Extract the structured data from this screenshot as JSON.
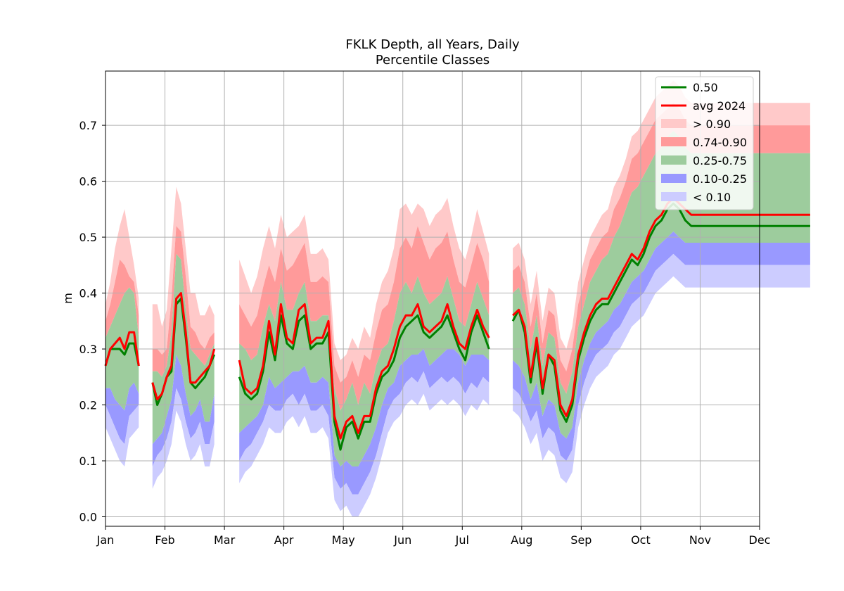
{
  "chart_data": {
    "type": "area",
    "title": "FKLK Depth, all Years, Daily",
    "subtitle": "Percentile Classes",
    "ylabel": "m",
    "xlabel": "",
    "ylim": [
      -0.017,
      0.797
    ],
    "xlim": [
      0,
      11
    ],
    "x_ticks": [
      "Jan",
      "Feb",
      "Mar",
      "Apr",
      "May",
      "Jun",
      "Jul",
      "Aug",
      "Sep",
      "Oct",
      "Nov",
      "Dec"
    ],
    "y_ticks": [
      "0.0",
      "0.1",
      "0.2",
      "0.3",
      "0.4",
      "0.5",
      "0.6",
      "0.7"
    ],
    "y_tick_values": [
      0.0,
      0.1,
      0.2,
      0.3,
      0.4,
      0.5,
      0.6,
      0.7
    ],
    "grid": true,
    "legend_position": "top-right",
    "colors": {
      "median": "#008000",
      "avg": "#ff0000",
      "gt90": "#ffc9c9",
      "p74_90": "#ff9a9a",
      "p25_75": "#9dcc9d",
      "p10_25": "#9999ff",
      "lt10": "#ccccff"
    },
    "legend": [
      {
        "label": "0.50",
        "kind": "line",
        "color": "#008000"
      },
      {
        "label": "avg 2024",
        "kind": "line",
        "color": "#ff0000"
      },
      {
        "label": "> 0.90",
        "kind": "patch",
        "color": "#ffc9c9"
      },
      {
        "label": "0.74-0.90",
        "kind": "patch",
        "color": "#ff9a9a"
      },
      {
        "label": "0.25-0.75",
        "kind": "patch",
        "color": "#9dcc9d"
      },
      {
        "label": "0.10-0.25",
        "kind": "patch",
        "color": "#9999ff"
      },
      {
        "label": "< 0.10",
        "kind": "patch",
        "color": "#ccccff"
      }
    ],
    "segments": [
      {
        "x": [
          0.0,
          0.08,
          0.16,
          0.24,
          0.32,
          0.4,
          0.48,
          0.56
        ],
        "median": [
          0.27,
          0.3,
          0.3,
          0.3,
          0.29,
          0.31,
          0.31,
          0.27
        ],
        "avg": [
          0.27,
          0.3,
          0.31,
          0.32,
          0.3,
          0.33,
          0.33,
          0.27
        ],
        "p10": [
          0.2,
          0.18,
          0.16,
          0.14,
          0.13,
          0.18,
          0.19,
          0.2
        ],
        "p25": [
          0.23,
          0.23,
          0.21,
          0.2,
          0.19,
          0.23,
          0.24,
          0.22
        ],
        "p75": [
          0.32,
          0.34,
          0.36,
          0.38,
          0.4,
          0.41,
          0.4,
          0.32
        ],
        "p90": [
          0.35,
          0.38,
          0.42,
          0.46,
          0.45,
          0.43,
          0.42,
          0.36
        ],
        "p100": [
          0.38,
          0.42,
          0.48,
          0.52,
          0.55,
          0.5,
          0.45,
          0.39
        ]
      },
      {
        "x": [
          0.79,
          0.87,
          0.95,
          1.03,
          1.11,
          1.19,
          1.27,
          1.35,
          1.43,
          1.51,
          1.59,
          1.67,
          1.75,
          1.83
        ],
        "median": [
          0.24,
          0.2,
          0.22,
          0.25,
          0.26,
          0.38,
          0.39,
          0.32,
          0.24,
          0.23,
          0.24,
          0.25,
          0.27,
          0.29
        ],
        "avg": [
          0.24,
          0.21,
          0.22,
          0.25,
          0.27,
          0.39,
          0.4,
          0.33,
          0.24,
          0.24,
          0.25,
          0.26,
          0.27,
          0.3
        ],
        "p10": [
          0.09,
          0.11,
          0.12,
          0.14,
          0.17,
          0.23,
          0.21,
          0.17,
          0.14,
          0.15,
          0.17,
          0.13,
          0.13,
          0.17
        ],
        "p25": [
          0.13,
          0.14,
          0.15,
          0.18,
          0.21,
          0.29,
          0.27,
          0.22,
          0.18,
          0.19,
          0.21,
          0.17,
          0.17,
          0.22
        ],
        "p75": [
          0.26,
          0.26,
          0.25,
          0.27,
          0.33,
          0.47,
          0.46,
          0.37,
          0.3,
          0.29,
          0.28,
          0.27,
          0.29,
          0.31
        ],
        "p90": [
          0.3,
          0.3,
          0.29,
          0.3,
          0.39,
          0.52,
          0.51,
          0.43,
          0.34,
          0.33,
          0.31,
          0.3,
          0.32,
          0.33
        ],
        "p100": [
          0.38,
          0.38,
          0.34,
          0.37,
          0.48,
          0.59,
          0.56,
          0.48,
          0.4,
          0.4,
          0.36,
          0.36,
          0.38,
          0.36
        ]
      },
      {
        "x": [
          2.25,
          2.35,
          2.45,
          2.55,
          2.65,
          2.75,
          2.85,
          2.95,
          3.05,
          3.15,
          3.25,
          3.35,
          3.45,
          3.55,
          3.65,
          3.75,
          3.85,
          3.95,
          4.05,
          4.15,
          4.25,
          4.35,
          4.45,
          4.55,
          4.65,
          4.75,
          4.85,
          4.95,
          5.05,
          5.15,
          5.25,
          5.35,
          5.45,
          5.55,
          5.65,
          5.75,
          5.85,
          5.95,
          6.05,
          6.15,
          6.25,
          6.35,
          6.45
        ],
        "median": [
          0.25,
          0.22,
          0.21,
          0.22,
          0.26,
          0.33,
          0.28,
          0.36,
          0.31,
          0.3,
          0.35,
          0.36,
          0.3,
          0.31,
          0.31,
          0.33,
          0.17,
          0.12,
          0.16,
          0.17,
          0.14,
          0.17,
          0.17,
          0.22,
          0.25,
          0.26,
          0.28,
          0.32,
          0.34,
          0.35,
          0.36,
          0.33,
          0.32,
          0.33,
          0.34,
          0.36,
          0.33,
          0.3,
          0.28,
          0.33,
          0.36,
          0.33,
          0.3
        ],
        "avg": [
          0.28,
          0.23,
          0.22,
          0.23,
          0.27,
          0.35,
          0.29,
          0.38,
          0.32,
          0.31,
          0.37,
          0.38,
          0.31,
          0.32,
          0.32,
          0.35,
          0.18,
          0.14,
          0.17,
          0.18,
          0.15,
          0.18,
          0.18,
          0.23,
          0.26,
          0.27,
          0.3,
          0.34,
          0.36,
          0.36,
          0.38,
          0.34,
          0.33,
          0.34,
          0.35,
          0.38,
          0.34,
          0.31,
          0.3,
          0.34,
          0.37,
          0.34,
          0.32
        ],
        "p10": [
          0.1,
          0.12,
          0.13,
          0.15,
          0.17,
          0.2,
          0.19,
          0.19,
          0.21,
          0.22,
          0.2,
          0.22,
          0.19,
          0.19,
          0.2,
          0.18,
          0.07,
          0.05,
          0.06,
          0.04,
          0.04,
          0.06,
          0.08,
          0.11,
          0.15,
          0.19,
          0.21,
          0.22,
          0.24,
          0.25,
          0.24,
          0.26,
          0.23,
          0.24,
          0.25,
          0.24,
          0.25,
          0.24,
          0.22,
          0.24,
          0.23,
          0.25,
          0.24
        ],
        "p25": [
          0.15,
          0.16,
          0.17,
          0.18,
          0.2,
          0.25,
          0.23,
          0.24,
          0.25,
          0.26,
          0.26,
          0.27,
          0.24,
          0.24,
          0.25,
          0.24,
          0.11,
          0.09,
          0.1,
          0.09,
          0.09,
          0.11,
          0.13,
          0.16,
          0.2,
          0.23,
          0.24,
          0.27,
          0.28,
          0.29,
          0.29,
          0.3,
          0.27,
          0.28,
          0.29,
          0.3,
          0.3,
          0.29,
          0.27,
          0.29,
          0.29,
          0.29,
          0.28
        ],
        "p75": [
          0.31,
          0.3,
          0.28,
          0.29,
          0.34,
          0.38,
          0.35,
          0.42,
          0.37,
          0.37,
          0.4,
          0.42,
          0.35,
          0.35,
          0.36,
          0.36,
          0.23,
          0.19,
          0.21,
          0.24,
          0.2,
          0.24,
          0.22,
          0.27,
          0.3,
          0.31,
          0.35,
          0.4,
          0.42,
          0.4,
          0.43,
          0.4,
          0.38,
          0.39,
          0.4,
          0.43,
          0.39,
          0.35,
          0.34,
          0.38,
          0.42,
          0.39,
          0.36
        ],
        "p90": [
          0.38,
          0.36,
          0.34,
          0.36,
          0.41,
          0.45,
          0.42,
          0.48,
          0.44,
          0.45,
          0.47,
          0.49,
          0.42,
          0.42,
          0.43,
          0.42,
          0.27,
          0.24,
          0.25,
          0.28,
          0.25,
          0.29,
          0.28,
          0.33,
          0.37,
          0.38,
          0.42,
          0.48,
          0.5,
          0.48,
          0.52,
          0.49,
          0.46,
          0.48,
          0.49,
          0.51,
          0.46,
          0.42,
          0.41,
          0.45,
          0.49,
          0.46,
          0.42
        ],
        "p100": [
          0.46,
          0.43,
          0.4,
          0.43,
          0.48,
          0.52,
          0.48,
          0.54,
          0.5,
          0.51,
          0.52,
          0.54,
          0.47,
          0.47,
          0.48,
          0.46,
          0.31,
          0.28,
          0.29,
          0.32,
          0.3,
          0.34,
          0.32,
          0.38,
          0.42,
          0.44,
          0.48,
          0.55,
          0.56,
          0.54,
          0.56,
          0.55,
          0.52,
          0.54,
          0.55,
          0.57,
          0.52,
          0.48,
          0.46,
          0.5,
          0.55,
          0.51,
          0.47
        ]
      },
      {
        "x": [
          6.85,
          6.95,
          7.05,
          7.15,
          7.25,
          7.35,
          7.45,
          7.55,
          7.65,
          7.75,
          7.85,
          7.95,
          8.05,
          8.15,
          8.25,
          8.35,
          8.45,
          8.55,
          8.65,
          8.75,
          8.85,
          8.95,
          9.05,
          9.15,
          9.25,
          9.35,
          9.45,
          9.55,
          9.65,
          9.75,
          9.85,
          9.95,
          10.05,
          10.15,
          10.25,
          10.35,
          10.45,
          10.55,
          10.65,
          10.75,
          10.85,
          10.95,
          11.05,
          11.15,
          11.25,
          11.35,
          11.45,
          11.55,
          11.65,
          11.75,
          11.85
        ],
        "median": [
          0.35,
          0.37,
          0.33,
          0.24,
          0.31,
          0.22,
          0.29,
          0.27,
          0.19,
          0.17,
          0.2,
          0.28,
          0.32,
          0.35,
          0.37,
          0.38,
          0.38,
          0.4,
          0.42,
          0.44,
          0.46,
          0.45,
          0.47,
          0.5,
          0.52,
          0.53,
          0.55,
          0.56,
          0.55,
          0.53,
          0.52,
          0.52,
          0.52,
          0.52,
          0.52,
          0.52,
          0.52,
          0.52,
          0.52,
          0.52,
          0.52,
          0.52,
          0.52,
          0.52,
          0.52,
          0.52,
          0.52,
          0.52,
          0.52,
          0.52,
          0.52
        ],
        "avg": [
          0.36,
          0.37,
          0.34,
          0.25,
          0.32,
          0.23,
          0.29,
          0.28,
          0.2,
          0.18,
          0.21,
          0.29,
          0.33,
          0.36,
          0.38,
          0.39,
          0.39,
          0.41,
          0.43,
          0.45,
          0.47,
          0.46,
          0.48,
          0.51,
          0.53,
          0.54,
          0.56,
          0.57,
          0.56,
          0.55,
          0.54,
          0.54,
          0.54,
          0.54,
          0.54,
          0.54,
          0.54,
          0.54,
          0.54,
          0.54,
          0.54,
          0.54,
          0.54,
          0.54,
          0.54,
          0.54,
          0.54,
          0.54,
          0.54,
          0.54,
          0.54
        ],
        "p10": [
          0.23,
          0.22,
          0.2,
          0.17,
          0.19,
          0.14,
          0.16,
          0.15,
          0.11,
          0.1,
          0.12,
          0.2,
          0.24,
          0.27,
          0.29,
          0.3,
          0.31,
          0.33,
          0.34,
          0.36,
          0.38,
          0.39,
          0.4,
          0.42,
          0.44,
          0.45,
          0.46,
          0.47,
          0.46,
          0.45,
          0.45,
          0.45,
          0.45,
          0.45,
          0.45,
          0.45,
          0.45,
          0.45,
          0.45,
          0.45,
          0.45,
          0.45,
          0.45,
          0.45,
          0.45,
          0.45,
          0.45,
          0.45,
          0.45,
          0.45,
          0.45
        ],
        "p25": [
          0.28,
          0.27,
          0.25,
          0.21,
          0.24,
          0.18,
          0.21,
          0.2,
          0.15,
          0.14,
          0.16,
          0.24,
          0.28,
          0.31,
          0.33,
          0.34,
          0.35,
          0.37,
          0.38,
          0.4,
          0.42,
          0.43,
          0.44,
          0.46,
          0.48,
          0.49,
          0.5,
          0.51,
          0.5,
          0.49,
          0.49,
          0.49,
          0.49,
          0.49,
          0.49,
          0.49,
          0.49,
          0.49,
          0.49,
          0.49,
          0.49,
          0.49,
          0.49,
          0.49,
          0.49,
          0.49,
          0.49,
          0.49,
          0.49,
          0.49,
          0.49
        ],
        "p75": [
          0.4,
          0.41,
          0.38,
          0.3,
          0.36,
          0.27,
          0.33,
          0.32,
          0.24,
          0.22,
          0.26,
          0.34,
          0.38,
          0.42,
          0.44,
          0.46,
          0.47,
          0.5,
          0.52,
          0.55,
          0.58,
          0.59,
          0.61,
          0.63,
          0.65,
          0.66,
          0.68,
          0.69,
          0.68,
          0.66,
          0.65,
          0.65,
          0.65,
          0.65,
          0.65,
          0.65,
          0.65,
          0.65,
          0.65,
          0.65,
          0.65,
          0.65,
          0.65,
          0.65,
          0.65,
          0.65,
          0.65,
          0.65,
          0.65,
          0.65,
          0.65
        ],
        "p90": [
          0.44,
          0.45,
          0.42,
          0.34,
          0.4,
          0.31,
          0.37,
          0.36,
          0.28,
          0.26,
          0.3,
          0.38,
          0.42,
          0.46,
          0.48,
          0.5,
          0.51,
          0.55,
          0.57,
          0.6,
          0.64,
          0.65,
          0.67,
          0.69,
          0.71,
          0.72,
          0.73,
          0.74,
          0.73,
          0.71,
          0.7,
          0.7,
          0.7,
          0.7,
          0.7,
          0.7,
          0.7,
          0.7,
          0.7,
          0.7,
          0.7,
          0.7,
          0.7,
          0.7,
          0.7,
          0.7,
          0.7,
          0.7,
          0.7,
          0.7,
          0.7
        ],
        "p100": [
          0.48,
          0.49,
          0.46,
          0.38,
          0.44,
          0.35,
          0.41,
          0.4,
          0.32,
          0.3,
          0.34,
          0.42,
          0.46,
          0.5,
          0.52,
          0.54,
          0.55,
          0.59,
          0.61,
          0.64,
          0.68,
          0.69,
          0.71,
          0.73,
          0.75,
          0.76,
          0.77,
          0.78,
          0.77,
          0.75,
          0.74,
          0.74,
          0.74,
          0.74,
          0.74,
          0.74,
          0.74,
          0.74,
          0.74,
          0.74,
          0.74,
          0.74,
          0.74,
          0.74,
          0.74,
          0.74,
          0.74,
          0.74,
          0.74,
          0.74,
          0.74
        ]
      }
    ]
  }
}
